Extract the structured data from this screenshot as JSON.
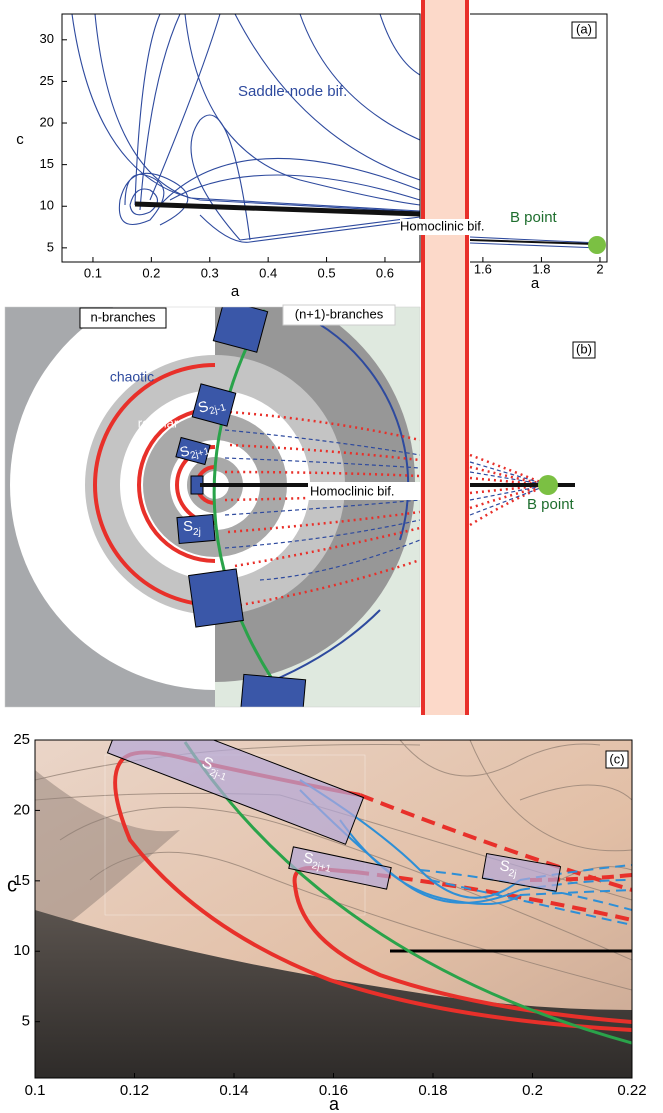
{
  "panel_a": {
    "label": "(a)",
    "x_label": "a",
    "x_label_right": "a",
    "y_label": "c",
    "xlim": [
      0.047,
      0.66
    ],
    "xticks": [
      0.1,
      0.2,
      0.3,
      0.4,
      0.5,
      0.6
    ],
    "xlim_right": [
      1.556,
      2.024
    ],
    "xticks_right": [
      1.6,
      1.8,
      2
    ],
    "ylim": [
      3.3,
      33.1
    ],
    "yticks": [
      5,
      10,
      15,
      20,
      25,
      30
    ],
    "saddle_node": "Saddle-node bif.",
    "homoclinic": "Homoclinic bif.",
    "b_point": "B point"
  },
  "panel_b": {
    "label": "(b)",
    "left_region": "n-branches",
    "right_region": "(n+1)-branches",
    "chaotic": "chaotic",
    "regular": "regular",
    "s_2j_minus_1": {
      "base": "S",
      "sub": "2j-1"
    },
    "s_2j_plus_1": {
      "base": "S",
      "sub": "2j+1"
    },
    "s_2j": {
      "base": "S",
      "sub": "2j"
    },
    "homoclinic": "Homoclinic bif.",
    "b_point": "B point"
  },
  "panel_c": {
    "label": "(c)",
    "x_label": "a",
    "y_label": "c",
    "xlim": [
      0.1,
      0.22
    ],
    "xticks": [
      0.1,
      0.12,
      0.14,
      0.16,
      0.18,
      0.2,
      0.22
    ],
    "ylim": [
      1,
      25
    ],
    "yticks": [
      5,
      10,
      15,
      20,
      25
    ],
    "s_2j_minus_1": {
      "base": "S",
      "sub": "2j-1"
    },
    "s_2j_plus_1": {
      "base": "S",
      "sub": "2j+1"
    },
    "s_2j": {
      "base": "S",
      "sub": "2j"
    }
  }
}
